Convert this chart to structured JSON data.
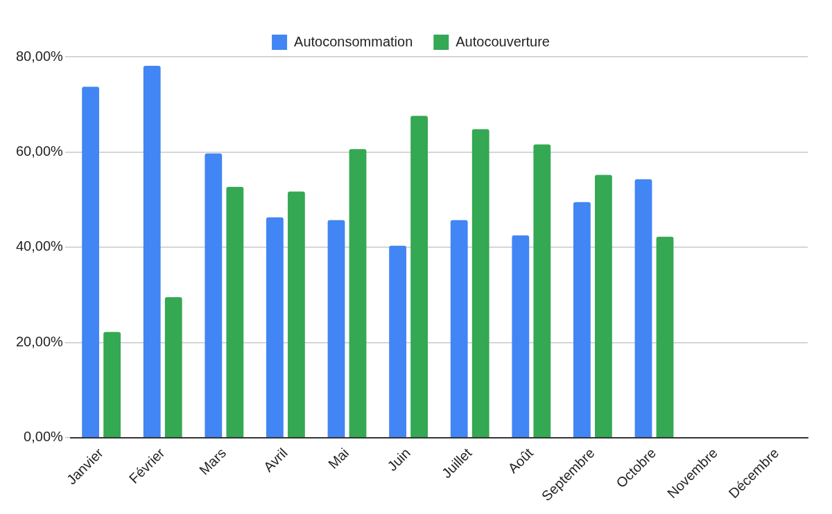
{
  "chart_data": {
    "type": "bar",
    "categories": [
      "Janvier",
      "Février",
      "Mars",
      "Avril",
      "Mai",
      "Juin",
      "Juillet",
      "Août",
      "Septembre",
      "Octobre",
      "Novembre",
      "Décembre"
    ],
    "series": [
      {
        "name": "Autoconsommation",
        "color": "#4285f4",
        "values": [
          73.7,
          78.1,
          59.7,
          46.3,
          45.7,
          40.3,
          45.7,
          42.5,
          49.5,
          54.3,
          null,
          null
        ]
      },
      {
        "name": "Autocouverture",
        "color": "#34a853",
        "values": [
          22.2,
          29.5,
          52.7,
          51.7,
          60.6,
          67.6,
          64.8,
          61.6,
          55.2,
          42.2,
          null,
          null
        ]
      }
    ],
    "ylim": [
      0,
      80
    ],
    "yticks": [
      {
        "value": 0,
        "label": "0,00%"
      },
      {
        "value": 20,
        "label": "20,00%"
      },
      {
        "value": 40,
        "label": "40,00%"
      },
      {
        "value": 60,
        "label": "60,00%"
      },
      {
        "value": 80,
        "label": "80,00%"
      }
    ],
    "grid": "y",
    "legend": "top"
  }
}
